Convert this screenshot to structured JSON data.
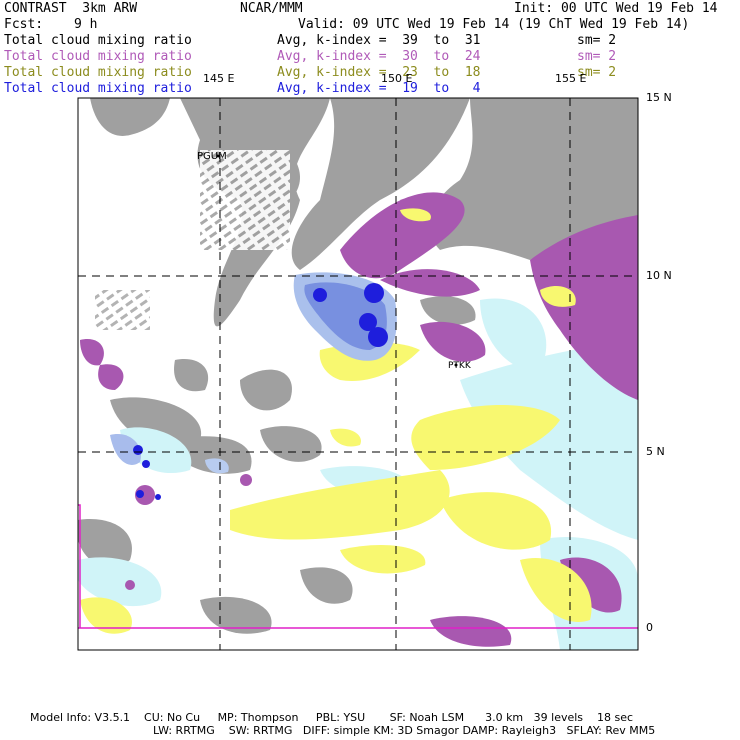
{
  "header": {
    "model": "CONTRAST  3km ARW",
    "center": "NCAR/MMM",
    "init": "Init: 00 UTC Wed 19 Feb 14",
    "fcst_label": "Fcst:",
    "fcst_value": "9 h",
    "valid": "Valid: 09 UTC Wed 19 Feb 14 (19 ChT Wed 19 Feb 14)"
  },
  "fields": [
    {
      "name": "Total cloud mixing ratio",
      "stat": "Avg, k-index =  39  to  31",
      "sm": "sm= 2",
      "color": "#000000"
    },
    {
      "name": "Total cloud mixing ratio",
      "stat": "Avg, k-index =  30  to  24",
      "sm": "sm= 2",
      "color": "#b05ab8"
    },
    {
      "name": "Total cloud mixing ratio",
      "stat": "Avg, k-index =  23  to  18",
      "sm": "sm= 2",
      "color": "#8c8c1e"
    },
    {
      "name": "Total cloud mixing ratio",
      "stat": "Avg, k-index =  19  to   4",
      "sm": "",
      "color": "#1e1edc"
    }
  ],
  "map": {
    "lon_labels": [
      "145 E",
      "150 E",
      "155 E"
    ],
    "lat_labels": [
      "15 N",
      "10 N",
      "5 N",
      "0"
    ],
    "stations": [
      "PGUM",
      "PTKK"
    ],
    "layer_colors": {
      "upper": "#a0a0a0",
      "mid": "#a858b0",
      "low": "#f8f870",
      "low_light": "#d0f4f8",
      "deep_blue": "#1e1edc"
    }
  },
  "footer": {
    "line1": "Model Info: V3.5.1    CU: No Cu     MP: Thompson     PBL: YSU       SF: Noah LSM      3.0 km   39 levels    18 sec",
    "line2": "LW: RRTMG    SW: RRTMG   DIFF: simple KM: 3D Smagor DAMP: Rayleigh3   SFLAY: Rev MM5"
  }
}
